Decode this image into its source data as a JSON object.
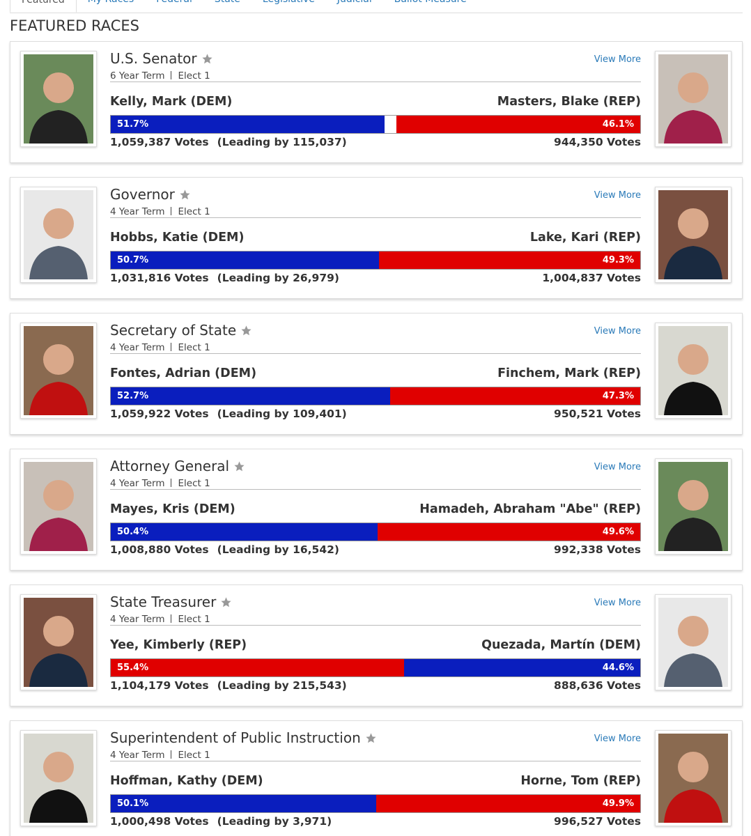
{
  "tabs": [
    "Featured",
    "My Races",
    "Federal",
    "State",
    "Legislative",
    "Judicial",
    "Ballot Measure"
  ],
  "heading": "FEATURED RACES",
  "view_more": "View More",
  "races": [
    {
      "office": "U.S. Senator",
      "term": "6 Year Term",
      "elect": "Elect 1",
      "left": {
        "name": "Kelly, Mark (DEM)",
        "color": "#0a1ebe",
        "pct": 51.7,
        "pct_label": "51.7%",
        "votes": "1,059,387 Votes",
        "lead": "(Leading by 115,037)"
      },
      "right": {
        "name": "Masters, Blake (REP)",
        "color": "#e00000",
        "pct": 46.1,
        "pct_label": "46.1%",
        "votes": "944,350 Votes"
      }
    },
    {
      "office": "Governor",
      "term": "4 Year Term",
      "elect": "Elect 1",
      "left": {
        "name": "Hobbs, Katie (DEM)",
        "color": "#0a1ebe",
        "pct": 50.7,
        "pct_label": "50.7%",
        "votes": "1,031,816 Votes",
        "lead": "(Leading by 26,979)"
      },
      "right": {
        "name": "Lake, Kari (REP)",
        "color": "#e00000",
        "pct": 49.3,
        "pct_label": "49.3%",
        "votes": "1,004,837 Votes"
      }
    },
    {
      "office": "Secretary of State",
      "term": "4 Year Term",
      "elect": "Elect 1",
      "left": {
        "name": "Fontes, Adrian (DEM)",
        "color": "#0a1ebe",
        "pct": 52.7,
        "pct_label": "52.7%",
        "votes": "1,059,922 Votes",
        "lead": "(Leading by 109,401)"
      },
      "right": {
        "name": "Finchem, Mark (REP)",
        "color": "#e00000",
        "pct": 47.3,
        "pct_label": "47.3%",
        "votes": "950,521 Votes"
      }
    },
    {
      "office": "Attorney General",
      "term": "4 Year Term",
      "elect": "Elect 1",
      "left": {
        "name": "Mayes, Kris (DEM)",
        "color": "#0a1ebe",
        "pct": 50.4,
        "pct_label": "50.4%",
        "votes": "1,008,880 Votes",
        "lead": "(Leading by 16,542)"
      },
      "right": {
        "name": "Hamadeh, Abraham \"Abe\" (REP)",
        "color": "#e00000",
        "pct": 49.6,
        "pct_label": "49.6%",
        "votes": "992,338 Votes"
      }
    },
    {
      "office": "State Treasurer",
      "term": "4 Year Term",
      "elect": "Elect 1",
      "left": {
        "name": "Yee, Kimberly (REP)",
        "color": "#e00000",
        "pct": 55.4,
        "pct_label": "55.4%",
        "votes": "1,104,179 Votes",
        "lead": "(Leading by 215,543)"
      },
      "right": {
        "name": "Quezada, Martín (DEM)",
        "color": "#0a1ebe",
        "pct": 44.6,
        "pct_label": "44.6%",
        "votes": "888,636 Votes"
      }
    },
    {
      "office": "Superintendent of Public Instruction",
      "term": "4 Year Term",
      "elect": "Elect 1",
      "left": {
        "name": "Hoffman, Kathy (DEM)",
        "color": "#0a1ebe",
        "pct": 50.1,
        "pct_label": "50.1%",
        "votes": "1,000,498 Votes",
        "lead": "(Leading by 3,971)"
      },
      "right": {
        "name": "Horne, Tom (REP)",
        "color": "#e00000",
        "pct": 49.9,
        "pct_label": "49.9%",
        "votes": "996,527 Votes"
      }
    }
  ]
}
